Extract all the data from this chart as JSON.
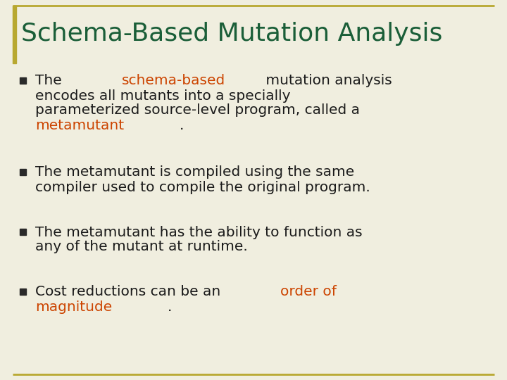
{
  "title": "Schema-Based Mutation Analysis",
  "title_color": "#1a5e38",
  "background_color": "#f0eedf",
  "border_color": "#b8a830",
  "bullet_color": "#2a2a2a",
  "bullet_points": [
    {
      "lines": [
        [
          {
            "text": "The ",
            "color": "#1a1a1a"
          },
          {
            "text": "schema-based",
            "color": "#cc4400"
          },
          {
            "text": " mutation analysis",
            "color": "#1a1a1a"
          }
        ],
        [
          {
            "text": "encodes all mutants into a specially",
            "color": "#1a1a1a"
          }
        ],
        [
          {
            "text": "parameterized source-level program, called a",
            "color": "#1a1a1a"
          }
        ],
        [
          {
            "text": "metamutant",
            "color": "#cc4400"
          },
          {
            "text": ".",
            "color": "#1a1a1a"
          }
        ]
      ]
    },
    {
      "lines": [
        [
          {
            "text": "The metamutant is compiled using the same",
            "color": "#1a1a1a"
          }
        ],
        [
          {
            "text": "compiler used to compile the original program.",
            "color": "#1a1a1a"
          }
        ]
      ]
    },
    {
      "lines": [
        [
          {
            "text": "The metamutant has the ability to function as",
            "color": "#1a1a1a"
          }
        ],
        [
          {
            "text": "any of the mutant at runtime.",
            "color": "#1a1a1a"
          }
        ]
      ]
    },
    {
      "lines": [
        [
          {
            "text": "Cost reductions can be an ",
            "color": "#1a1a1a"
          },
          {
            "text": "order of",
            "color": "#cc4400"
          }
        ],
        [
          {
            "text": "magnitude",
            "color": "#cc4400"
          },
          {
            "text": ".",
            "color": "#1a1a1a"
          }
        ]
      ]
    }
  ],
  "font_size_title": 26,
  "font_size_body": 14.5,
  "figwidth": 7.2,
  "figheight": 5.4,
  "dpi": 100
}
